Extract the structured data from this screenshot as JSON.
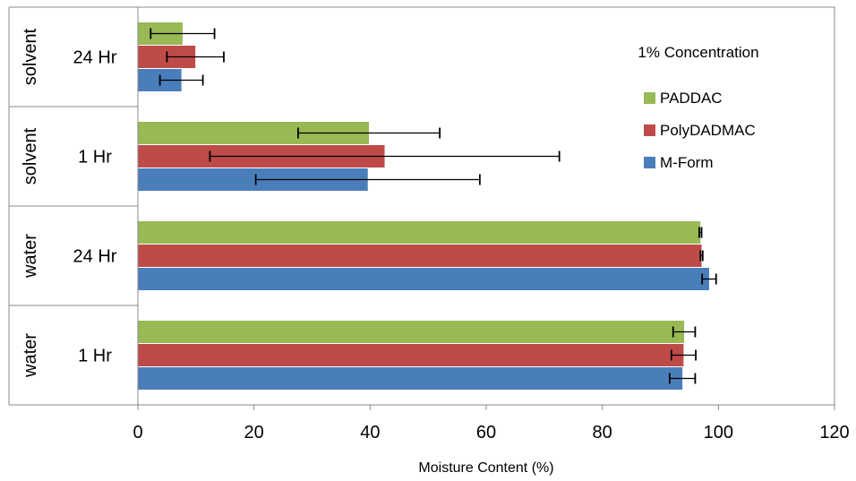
{
  "chart_data": {
    "type": "bar",
    "orientation": "horizontal",
    "xlabel": "Moisture Content (%)",
    "xlim": [
      0,
      120
    ],
    "xticks": [
      "0",
      "20",
      "40",
      "60",
      "80",
      "100",
      "120"
    ],
    "grid": false,
    "legend_title": "1% Concentration",
    "legend_position": "right",
    "categories": [
      {
        "group": "water",
        "time": "1 Hr"
      },
      {
        "group": "water",
        "time": "24 Hr"
      },
      {
        "group": "solvent",
        "time": "1 Hr"
      },
      {
        "group": "solvent",
        "time": "24 Hr"
      }
    ],
    "series": [
      {
        "name": "M-Form",
        "color": "#4a7ebb",
        "values": [
          93.8,
          98.4,
          39.6,
          7.5
        ],
        "errors": [
          2.2,
          1.2,
          19.3,
          3.7
        ]
      },
      {
        "name": "PolyDADMAC",
        "color": "#be4b48",
        "values": [
          94.0,
          97.1,
          42.5,
          9.9
        ],
        "errors": [
          2.1,
          0.2,
          30.1,
          4.9
        ]
      },
      {
        "name": "PADDAC",
        "color": "#98b954",
        "values": [
          94.1,
          96.9,
          39.8,
          7.7
        ],
        "errors": [
          1.9,
          0.2,
          12.2,
          5.5
        ]
      }
    ]
  }
}
